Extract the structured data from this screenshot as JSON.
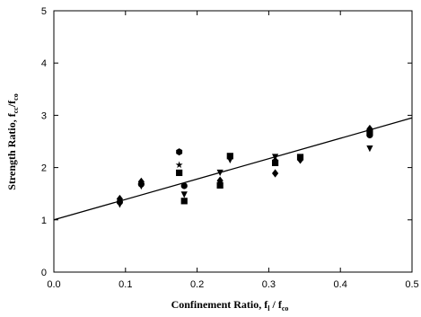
{
  "chart_data": {
    "type": "scatter",
    "title": "",
    "xlabel": {
      "main": "Confinement Ratio, f",
      "sub1": "l",
      "middle": " / f",
      "sub2": "co"
    },
    "ylabel": {
      "main": "Strength Ratio, f",
      "sub1": "cc",
      "middle": "/f",
      "sub2": "co"
    },
    "xlim": [
      0.0,
      0.5
    ],
    "ylim": [
      0,
      5
    ],
    "xticks": [
      "0.0",
      "0.1",
      "0.2",
      "0.3",
      "0.4",
      "0.5"
    ],
    "yticks": [
      "0",
      "1",
      "2",
      "3",
      "4",
      "5"
    ],
    "grid": false,
    "legend": "none",
    "fit_line": {
      "intercept": 1.0,
      "slope": 3.9,
      "x_range": [
        0.0,
        0.5
      ]
    },
    "points": [
      {
        "x": 0.092,
        "y": 1.4,
        "marker": "diamond"
      },
      {
        "x": 0.092,
        "y": 1.34,
        "marker": "circle"
      },
      {
        "x": 0.092,
        "y": 1.29,
        "marker": "triangle-down"
      },
      {
        "x": 0.122,
        "y": 1.73,
        "marker": "diamond"
      },
      {
        "x": 0.122,
        "y": 1.68,
        "marker": "circle"
      },
      {
        "x": 0.122,
        "y": 1.64,
        "marker": "triangle-down"
      },
      {
        "x": 0.175,
        "y": 2.3,
        "marker": "hexagon"
      },
      {
        "x": 0.175,
        "y": 2.05,
        "marker": "star"
      },
      {
        "x": 0.175,
        "y": 1.9,
        "marker": "square"
      },
      {
        "x": 0.182,
        "y": 1.65,
        "marker": "circle"
      },
      {
        "x": 0.182,
        "y": 1.48,
        "marker": "triangle-down"
      },
      {
        "x": 0.182,
        "y": 1.36,
        "marker": "square"
      },
      {
        "x": 0.232,
        "y": 1.9,
        "marker": "triangle-down"
      },
      {
        "x": 0.232,
        "y": 1.75,
        "marker": "diamond"
      },
      {
        "x": 0.232,
        "y": 1.66,
        "marker": "square"
      },
      {
        "x": 0.246,
        "y": 2.22,
        "marker": "square"
      },
      {
        "x": 0.246,
        "y": 2.14,
        "marker": "triangle-down"
      },
      {
        "x": 0.309,
        "y": 2.2,
        "marker": "triangle-down"
      },
      {
        "x": 0.309,
        "y": 2.13,
        "marker": "diamond"
      },
      {
        "x": 0.309,
        "y": 2.09,
        "marker": "square"
      },
      {
        "x": 0.309,
        "y": 1.89,
        "marker": "diamond"
      },
      {
        "x": 0.344,
        "y": 2.2,
        "marker": "square"
      },
      {
        "x": 0.344,
        "y": 2.15,
        "marker": "diamond"
      },
      {
        "x": 0.441,
        "y": 2.74,
        "marker": "diamond"
      },
      {
        "x": 0.441,
        "y": 2.67,
        "marker": "square"
      },
      {
        "x": 0.441,
        "y": 2.62,
        "marker": "circle"
      },
      {
        "x": 0.441,
        "y": 2.36,
        "marker": "triangle-down"
      }
    ]
  }
}
